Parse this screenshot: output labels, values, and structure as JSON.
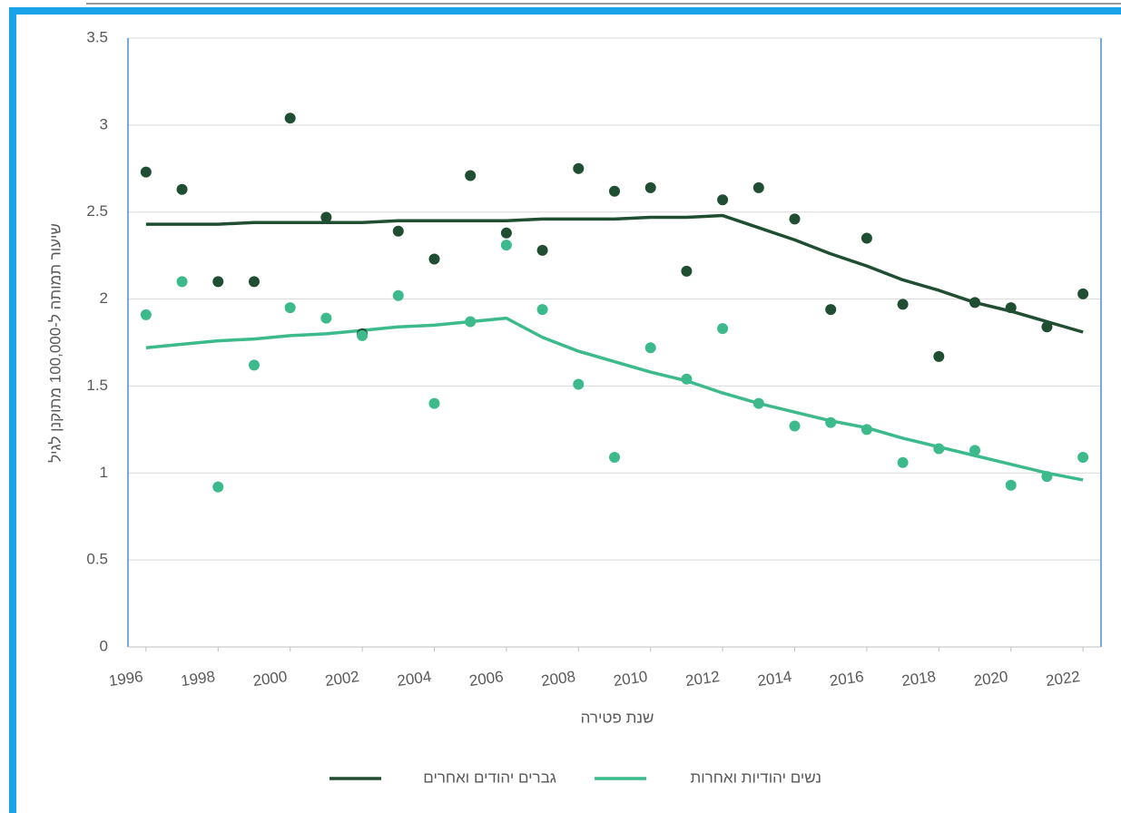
{
  "chart_data": {
    "type": "scatter",
    "x_label": "שנת פטירה",
    "y_label": "שיעור תמותה ל-100,000 מתוקנן לגיל",
    "x": [
      1996,
      1997,
      1998,
      1999,
      2000,
      2001,
      2002,
      2003,
      2004,
      2005,
      2006,
      2007,
      2008,
      2009,
      2010,
      2011,
      2012,
      2013,
      2014,
      2015,
      2016,
      2017,
      2018,
      2019,
      2020,
      2021,
      2022
    ],
    "xlim": [
      1995.5,
      2022.5
    ],
    "xticks": [
      1996,
      1998,
      2000,
      2002,
      2004,
      2006,
      2008,
      2010,
      2012,
      2014,
      2016,
      2018,
      2020,
      2022
    ],
    "ylim": [
      0,
      3.5
    ],
    "yticks": [
      0,
      0.5,
      1,
      1.5,
      2,
      2.5,
      3,
      3.5
    ],
    "grid": true,
    "legend": "bottom",
    "series": [
      {
        "name": "גברים יהודים ואחרים",
        "color": "#1f4e33",
        "values": [
          2.73,
          2.63,
          2.1,
          2.1,
          3.04,
          2.47,
          1.8,
          2.39,
          2.23,
          2.71,
          2.38,
          2.28,
          2.75,
          2.62,
          2.64,
          2.16,
          2.57,
          2.64,
          2.46,
          1.94,
          2.35,
          1.97,
          1.67,
          1.98,
          1.95,
          1.84,
          2.03
        ],
        "trend": [
          2.43,
          2.43,
          2.43,
          2.44,
          2.44,
          2.44,
          2.44,
          2.45,
          2.45,
          2.45,
          2.45,
          2.46,
          2.46,
          2.46,
          2.47,
          2.47,
          2.48,
          2.41,
          2.34,
          2.26,
          2.19,
          2.11,
          2.05,
          1.98,
          1.93,
          1.87,
          1.81
        ]
      },
      {
        "name": "נשים יהודיות ואחרות",
        "color": "#3dba8c",
        "values": [
          1.91,
          2.1,
          0.92,
          1.62,
          1.95,
          1.89,
          1.79,
          2.02,
          1.4,
          1.87,
          2.31,
          1.94,
          1.51,
          1.09,
          1.72,
          1.54,
          1.83,
          1.4,
          1.27,
          1.29,
          1.25,
          1.06,
          1.14,
          1.13,
          0.93,
          0.98,
          1.09
        ],
        "trend": [
          1.72,
          1.74,
          1.76,
          1.77,
          1.79,
          1.8,
          1.82,
          1.84,
          1.85,
          1.87,
          1.89,
          1.78,
          1.7,
          1.64,
          1.58,
          1.53,
          1.46,
          1.4,
          1.35,
          1.3,
          1.26,
          1.2,
          1.15,
          1.1,
          1.05,
          1.0,
          0.96
        ]
      }
    ]
  }
}
